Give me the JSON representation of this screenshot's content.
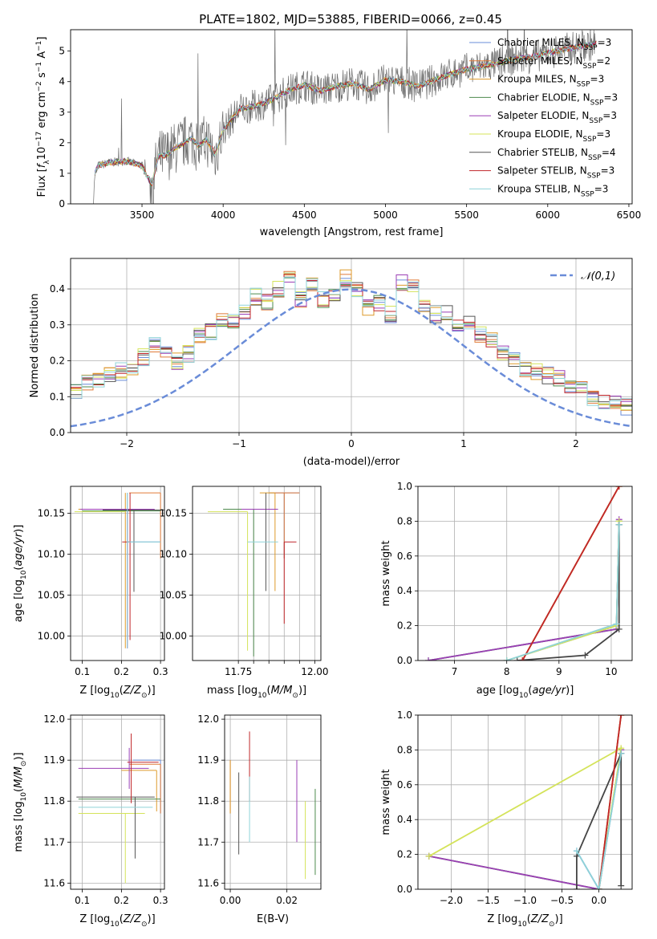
{
  "figure": {
    "title": "PLATE=1802, MJD=53885, FIBERID=0066, z=0.45"
  },
  "series_colors": [
    "#6a8cd8",
    "#e07b39",
    "#dd9a2a",
    "#4e8a4e",
    "#9b3fb5",
    "#d4e35a",
    "#555555",
    "#c0262a",
    "#8fd3d8"
  ],
  "chart_data": [
    {
      "id": "spectrum",
      "type": "line",
      "xlabel": "wavelength [Angstrom, rest frame]",
      "ylabel": "Flux [f_λ 10^-17 erg cm^-2 s^-1 A^-1]",
      "xlim": [
        3060,
        6520
      ],
      "ylim": [
        0,
        5.7
      ],
      "xticks": [
        3500,
        4000,
        4500,
        5000,
        5500,
        6000,
        6500
      ],
      "yticks": [
        0,
        1,
        2,
        3,
        4,
        5
      ],
      "legend_position": "upper-right",
      "legend": [
        {
          "label": "Chabrier MILES, N_SSP=3",
          "color": "#6a8cd8"
        },
        {
          "label": "Salpeter MILES, N_SSP=2",
          "color": "#e07b39"
        },
        {
          "label": "Kroupa MILES, N_SSP=3",
          "color": "#dd9a2a"
        },
        {
          "label": "Chabrier ELODIE, N_SSP=3",
          "color": "#4e8a4e"
        },
        {
          "label": "Salpeter ELODIE, N_SSP=3",
          "color": "#9b3fb5"
        },
        {
          "label": "Kroupa ELODIE, N_SSP=3",
          "color": "#d4e35a"
        },
        {
          "label": "Chabrier STELIB, N_SSP=4",
          "color": "#555555"
        },
        {
          "label": "Salpeter STELIB, N_SSP=3",
          "color": "#c0262a"
        },
        {
          "label": "Kroupa STELIB, N_SSP=3",
          "color": "#8fd3d8"
        }
      ],
      "continuum": [
        [
          3200,
          0.0
        ],
        [
          3210,
          1.0
        ],
        [
          3230,
          1.25
        ],
        [
          3300,
          1.35
        ],
        [
          3400,
          1.4
        ],
        [
          3500,
          1.25
        ],
        [
          3560,
          0.6
        ],
        [
          3600,
          1.55
        ],
        [
          3650,
          1.6
        ],
        [
          3700,
          1.8
        ],
        [
          3800,
          2.15
        ],
        [
          3850,
          1.9
        ],
        [
          3900,
          2.1
        ],
        [
          3950,
          1.6
        ],
        [
          4000,
          2.4
        ],
        [
          4100,
          3.1
        ],
        [
          4200,
          3.2
        ],
        [
          4300,
          3.4
        ],
        [
          4400,
          3.7
        ],
        [
          4500,
          3.9
        ],
        [
          4600,
          3.7
        ],
        [
          4700,
          3.85
        ],
        [
          4800,
          3.95
        ],
        [
          4900,
          3.75
        ],
        [
          5000,
          4.05
        ],
        [
          5100,
          4.0
        ],
        [
          5200,
          3.85
        ],
        [
          5300,
          4.05
        ],
        [
          5400,
          4.25
        ],
        [
          5500,
          4.4
        ],
        [
          5600,
          4.5
        ],
        [
          5700,
          4.6
        ],
        [
          5800,
          4.75
        ],
        [
          5900,
          4.8
        ],
        [
          6000,
          4.95
        ],
        [
          6100,
          5.05
        ],
        [
          6200,
          5.15
        ],
        [
          6300,
          5.25
        ]
      ]
    },
    {
      "id": "residuals",
      "type": "histogram",
      "xlabel": "(data-model)/error",
      "ylabel": "Normed distribution",
      "xlim": [
        -2.5,
        2.5
      ],
      "ylim": [
        0,
        0.485
      ],
      "xticks": [
        -2,
        -1,
        0,
        1,
        2
      ],
      "yticks": [
        0.0,
        0.1,
        0.2,
        0.3,
        0.4
      ],
      "bin_width": 0.1,
      "legend_position": "upper-right",
      "reference_label": "𝒩(0,1)",
      "reference_color": "#6a8cd8",
      "base_histogram": [
        0.02,
        0.03,
        0.03,
        0.04,
        0.05,
        0.05,
        0.06,
        0.07,
        0.08,
        0.1,
        0.12,
        0.14,
        0.15,
        0.16,
        0.17,
        0.18,
        0.21,
        0.24,
        0.22,
        0.2,
        0.22,
        0.27,
        0.28,
        0.32,
        0.31,
        0.34,
        0.38,
        0.36,
        0.4,
        0.44,
        0.37,
        0.41,
        0.37,
        0.38,
        0.43,
        0.4,
        0.35,
        0.36,
        0.33,
        0.42,
        0.4,
        0.36,
        0.33,
        0.33,
        0.3,
        0.31,
        0.27,
        0.26,
        0.22,
        0.2,
        0.18,
        0.17,
        0.16,
        0.15,
        0.13,
        0.12,
        0.1,
        0.09,
        0.08,
        0.07,
        0.06,
        0.06,
        0.05,
        0.05,
        0.05,
        0.04,
        0.04,
        0.03,
        0.03,
        0.03
      ]
    },
    {
      "id": "age_vs_Z",
      "type": "errorbar",
      "xlabel": "Z [log10(Z/Z⊙)]",
      "ylabel": "age [log10(age/yr)]",
      "xlim": [
        0.07,
        0.31
      ],
      "ylim": [
        9.97,
        10.183
      ],
      "xticks": [
        0.1,
        0.2,
        0.3
      ],
      "yticks": [
        10.0,
        10.05,
        10.1,
        10.15
      ],
      "points": [
        {
          "s": 0,
          "x": 0.215,
          "y": 10.115,
          "xerr": [
            0.0,
            0.085
          ],
          "yerr": [
            0.13,
            0.06
          ]
        },
        {
          "s": 1,
          "x": 0.3,
          "y": 10.175,
          "xerr": [
            0.08,
            0.0
          ],
          "yerr": [
            0.08,
            0.0
          ]
        },
        {
          "s": 2,
          "x": 0.21,
          "y": 10.155,
          "xerr": [
            0.12,
            0.0
          ],
          "yerr": [
            0.17,
            0.02
          ]
        },
        {
          "s": 3,
          "x": 0.2,
          "y": 10.153,
          "xerr": [
            0.1,
            0.1
          ],
          "yerr": [
            0.0,
            0.0
          ]
        },
        {
          "s": 4,
          "x": 0.215,
          "y": 10.155,
          "xerr": [
            0.12,
            0.07
          ],
          "yerr": [
            0.17,
            0.0
          ]
        },
        {
          "s": 5,
          "x": 0.21,
          "y": 10.152,
          "xerr": [
            0.13,
            0.0
          ],
          "yerr": [
            0.0,
            0.0
          ]
        },
        {
          "s": 6,
          "x": 0.232,
          "y": 10.154,
          "xerr": [
            0.08,
            0.08
          ],
          "yerr": [
            0.1,
            0.0
          ]
        },
        {
          "s": 7,
          "x": 0.222,
          "y": 10.115,
          "xerr": [
            0.02,
            0.0
          ],
          "yerr": [
            0.12,
            0.06
          ]
        },
        {
          "s": 8,
          "x": 0.215,
          "y": 10.115,
          "xerr": [
            0.0,
            0.085
          ],
          "yerr": [
            0.13,
            0.06
          ]
        }
      ]
    },
    {
      "id": "age_vs_mass",
      "type": "errorbar",
      "xlabel": "mass [log10(M/M⊙)]",
      "ylabel": "",
      "xlim": [
        11.6,
        12.02
      ],
      "ylim": [
        9.97,
        10.183
      ],
      "xticks": [
        11.75,
        11.8,
        11.85,
        11.9,
        11.95,
        12.0
      ],
      "xtick_labels": [
        "11.75",
        "",
        "",
        "",
        "",
        "12.00"
      ],
      "yticks": [
        10.0,
        10.05,
        10.1,
        10.15
      ],
      "points": [
        {
          "s": 0,
          "x": 11.9,
          "y": 10.175,
          "xerr": [
            0.05,
            0.05
          ],
          "yerr": [
            0.08,
            0.0
          ]
        },
        {
          "s": 1,
          "x": 11.9,
          "y": 10.175,
          "xerr": [
            0.05,
            0.05
          ],
          "yerr": [
            0.08,
            0.0
          ]
        },
        {
          "s": 2,
          "x": 11.87,
          "y": 10.175,
          "xerr": [
            0.05,
            0.0
          ],
          "yerr": [
            0.12,
            0.0
          ]
        },
        {
          "s": 3,
          "x": 11.8,
          "y": 10.155,
          "xerr": [
            0.1,
            0.05
          ],
          "yerr": [
            0.18,
            0.0
          ]
        },
        {
          "s": 4,
          "x": 11.88,
          "y": 10.155,
          "xerr": [
            0.12,
            0.0
          ],
          "yerr": [
            0.0,
            0.0
          ]
        },
        {
          "s": 5,
          "x": 11.78,
          "y": 10.152,
          "xerr": [
            0.13,
            0.0
          ],
          "yerr": [
            0.17,
            0.0
          ]
        },
        {
          "s": 6,
          "x": 11.84,
          "y": 10.155,
          "xerr": [
            0.0,
            0.0
          ],
          "yerr": [
            0.1,
            0.02
          ]
        },
        {
          "s": 7,
          "x": 11.9,
          "y": 10.115,
          "xerr": [
            0.0,
            0.04
          ],
          "yerr": [
            0.1,
            0.0
          ]
        },
        {
          "s": 8,
          "x": 11.82,
          "y": 10.115,
          "xerr": [
            0.04,
            0.06
          ],
          "yerr": [
            0.0,
            0.0
          ]
        }
      ]
    },
    {
      "id": "massweight_vs_age",
      "type": "line",
      "xlabel": "age [log10(age/yr)]",
      "ylabel": "mass weight",
      "xlim": [
        6.3,
        10.4
      ],
      "ylim": [
        0.0,
        1.0
      ],
      "xticks": [
        7,
        8,
        9,
        10
      ],
      "yticks": [
        0.0,
        0.2,
        0.4,
        0.6,
        0.8,
        1.0
      ],
      "series": [
        {
          "s": 0,
          "x": [
            8.0,
            10.1,
            10.15
          ],
          "y": [
            0.0,
            0.2,
            0.78
          ]
        },
        {
          "s": 1,
          "x": [
            8.3,
            10.15
          ],
          "y": [
            0.0,
            1.0
          ]
        },
        {
          "s": 2,
          "x": [
            8.3,
            10.15
          ],
          "y": [
            0.0,
            1.0
          ]
        },
        {
          "s": 3,
          "x": [
            6.5,
            10.1,
            10.15
          ],
          "y": [
            0.0,
            0.18,
            0.8
          ]
        },
        {
          "s": 4,
          "x": [
            6.5,
            10.1,
            10.15
          ],
          "y": [
            0.0,
            0.18,
            0.81
          ]
        },
        {
          "s": 5,
          "x": [
            8.0,
            10.1,
            10.15
          ],
          "y": [
            0.0,
            0.2,
            0.8
          ]
        },
        {
          "s": 6,
          "x": [
            8.2,
            9.5,
            10.15,
            10.15
          ],
          "y": [
            0.0,
            0.03,
            0.18,
            0.78
          ]
        },
        {
          "s": 7,
          "x": [
            8.3,
            10.15
          ],
          "y": [
            0.0,
            1.0
          ]
        },
        {
          "s": 8,
          "x": [
            8.0,
            10.1,
            10.15
          ],
          "y": [
            0.0,
            0.21,
            0.78
          ]
        }
      ]
    },
    {
      "id": "mass_vs_Z",
      "type": "errorbar",
      "xlabel": "Z [log10(Z/Z⊙)]",
      "ylabel": "mass [log10(M/M⊙)]",
      "xlim": [
        0.07,
        0.31
      ],
      "ylim": [
        11.585,
        12.01
      ],
      "xticks": [
        0.1,
        0.2,
        0.3
      ],
      "yticks": [
        11.6,
        11.7,
        11.8,
        11.9,
        12.0
      ],
      "points": [
        {
          "s": 0,
          "x": 0.3,
          "y": 11.9,
          "xerr": [
            0.07,
            0.0
          ],
          "yerr": [
            0.13,
            0.0
          ]
        },
        {
          "s": 1,
          "x": 0.3,
          "y": 11.89,
          "xerr": [
            0.08,
            0.0
          ],
          "yerr": [
            0.12,
            0.0
          ]
        },
        {
          "s": 2,
          "x": 0.29,
          "y": 11.875,
          "xerr": [
            0.09,
            0.0
          ],
          "yerr": [
            0.1,
            0.0
          ]
        },
        {
          "s": 3,
          "x": 0.2,
          "y": 11.805,
          "xerr": [
            0.11,
            0.1
          ],
          "yerr": [
            0.0,
            0.0
          ]
        },
        {
          "s": 4,
          "x": 0.22,
          "y": 11.88,
          "xerr": [
            0.13,
            0.05
          ],
          "yerr": [
            0.05,
            0.05
          ]
        },
        {
          "s": 5,
          "x": 0.21,
          "y": 11.77,
          "xerr": [
            0.12,
            0.05
          ],
          "yerr": [
            0.17,
            0.0
          ]
        },
        {
          "s": 6,
          "x": 0.235,
          "y": 11.81,
          "xerr": [
            0.15,
            0.05
          ],
          "yerr": [
            0.15,
            0.0
          ]
        },
        {
          "s": 7,
          "x": 0.225,
          "y": 11.895,
          "xerr": [
            0.01,
            0.07
          ],
          "yerr": [
            0.1,
            0.07
          ]
        },
        {
          "s": 8,
          "x": 0.21,
          "y": 11.785,
          "xerr": [
            0.12,
            0.07
          ],
          "yerr": [
            0.0,
            0.0
          ]
        }
      ]
    },
    {
      "id": "mass_vs_ebv",
      "type": "errorbar",
      "xlabel": "E(B-V)",
      "ylabel": "",
      "xlim": [
        -0.002,
        0.032
      ],
      "ylim": [
        11.585,
        12.01
      ],
      "xticks": [
        0.0,
        0.02
      ],
      "yticks": [
        11.6,
        11.7,
        11.8,
        11.9,
        12.0
      ],
      "points": [
        {
          "s": 0,
          "x": 0.0,
          "y": 11.85,
          "xerr": [
            0.0,
            0.0
          ],
          "yerr": [
            0.08,
            0.05
          ]
        },
        {
          "s": 1,
          "x": 0.0,
          "y": 11.85,
          "xerr": [
            0.0,
            0.0
          ],
          "yerr": [
            0.08,
            0.05
          ]
        },
        {
          "s": 2,
          "x": 0.0,
          "y": 11.85,
          "xerr": [
            0.0,
            0.0
          ],
          "yerr": [
            0.08,
            0.05
          ]
        },
        {
          "s": 3,
          "x": 0.03,
          "y": 11.73,
          "xerr": [
            0.0,
            0.0
          ],
          "yerr": [
            0.11,
            0.1
          ]
        },
        {
          "s": 4,
          "x": 0.0235,
          "y": 11.8,
          "xerr": [
            0.0,
            0.0
          ],
          "yerr": [
            0.1,
            0.1
          ]
        },
        {
          "s": 5,
          "x": 0.0265,
          "y": 11.73,
          "xerr": [
            0.0,
            0.0
          ],
          "yerr": [
            0.12,
            0.07
          ]
        },
        {
          "s": 6,
          "x": 0.003,
          "y": 11.77,
          "xerr": [
            0.0,
            0.0
          ],
          "yerr": [
            0.1,
            0.1
          ]
        },
        {
          "s": 7,
          "x": 0.0068,
          "y": 11.87,
          "xerr": [
            0.0,
            0.0
          ],
          "yerr": [
            0.07,
            0.1
          ]
        },
        {
          "s": 8,
          "x": 0.0068,
          "y": 11.78,
          "xerr": [
            0.0,
            0.0
          ],
          "yerr": [
            0.08,
            0.08
          ]
        }
      ]
    },
    {
      "id": "massweight_vs_Z",
      "type": "line",
      "xlabel": "Z [log10(Z/Z⊙)]",
      "ylabel": "mass weight",
      "xlim": [
        -2.45,
        0.45
      ],
      "ylim": [
        0.0,
        1.0
      ],
      "xticks": [
        -2.0,
        -1.5,
        -1.0,
        -0.5,
        0.0
      ],
      "yticks": [
        0.0,
        0.2,
        0.4,
        0.6,
        0.8,
        1.0
      ],
      "series": [
        {
          "s": 0,
          "x": [
            -0.3,
            0.0,
            0.3
          ],
          "y": [
            0.22,
            0.0,
            0.78
          ]
        },
        {
          "s": 1,
          "x": [
            0.0,
            0.3
          ],
          "y": [
            0.0,
            1.0
          ]
        },
        {
          "s": 2,
          "x": [
            0.0,
            0.3
          ],
          "y": [
            0.0,
            1.0
          ]
        },
        {
          "s": 3,
          "x": [
            -2.3,
            0.0,
            0.3
          ],
          "y": [
            0.19,
            0.0,
            0.8
          ]
        },
        {
          "s": 4,
          "x": [
            -2.3,
            0.0,
            0.3
          ],
          "y": [
            0.19,
            0.0,
            0.8
          ]
        },
        {
          "s": 5,
          "x": [
            -2.3,
            0.3,
            0.0
          ],
          "y": [
            0.19,
            0.81,
            0.0
          ]
        },
        {
          "s": 6,
          "x": [
            -0.3,
            -0.3,
            0.3,
            0.3
          ],
          "y": [
            0.0,
            0.19,
            0.78,
            0.02
          ]
        },
        {
          "s": 7,
          "x": [
            0.0,
            0.3
          ],
          "y": [
            0.0,
            1.0
          ]
        },
        {
          "s": 8,
          "x": [
            -0.3,
            0.0,
            0.3
          ],
          "y": [
            0.22,
            0.0,
            0.78
          ]
        }
      ]
    }
  ]
}
